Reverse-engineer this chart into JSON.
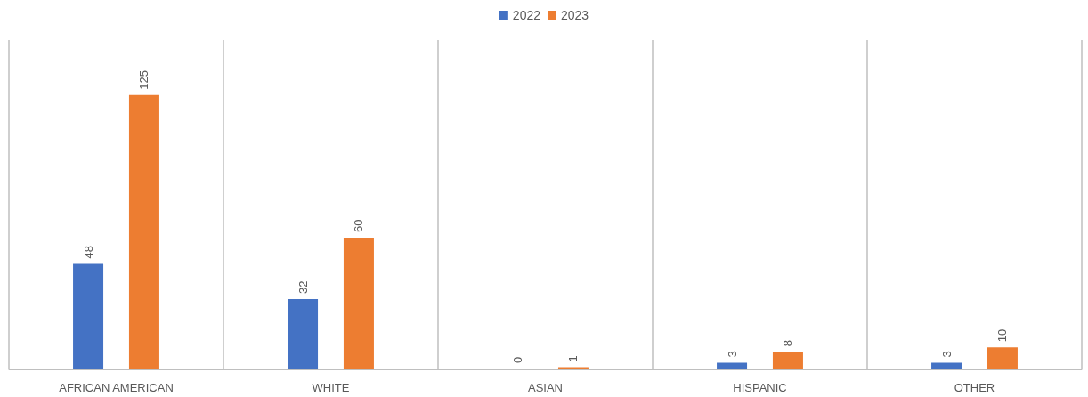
{
  "chart_data": {
    "type": "bar",
    "categories": [
      "AFRICAN AMERICAN",
      "WHITE",
      "ASIAN",
      "HISPANIC",
      "OTHER"
    ],
    "series": [
      {
        "name": "2022",
        "color": "#4472c4",
        "values": [
          48,
          32,
          0,
          3,
          3
        ]
      },
      {
        "name": "2023",
        "color": "#ed7d31",
        "values": [
          125,
          60,
          1,
          8,
          10
        ]
      }
    ],
    "data_labels": true,
    "grid": "x",
    "legend": "top"
  }
}
